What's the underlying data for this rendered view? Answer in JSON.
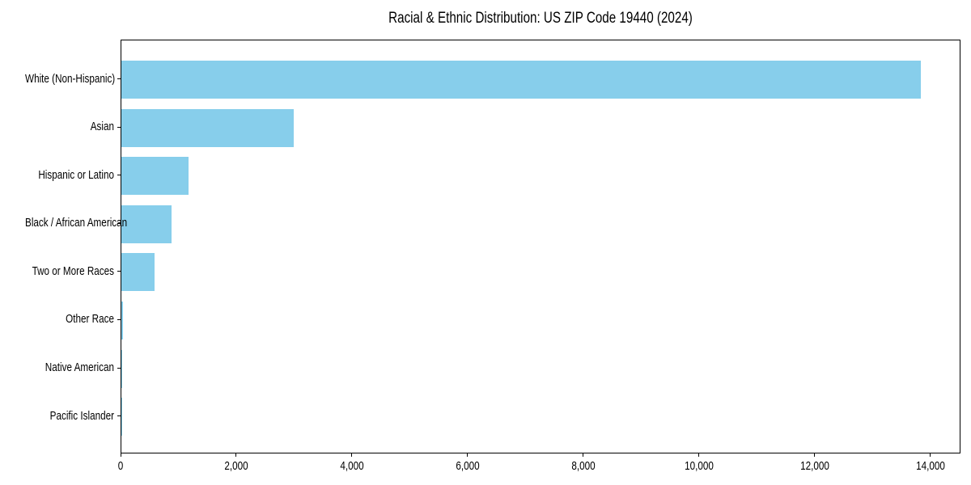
{
  "chart_data": {
    "type": "bar",
    "orientation": "horizontal",
    "title": "Racial & Ethnic Distribution: US ZIP Code 19440 (2024)",
    "categories": [
      "White (Non-Hispanic)",
      "Asian",
      "Hispanic or Latino",
      "Black / African American",
      "Two or More Races",
      "Other Race",
      "Native American",
      "Pacific Islander"
    ],
    "values": [
      13815,
      2975,
      1165,
      870,
      580,
      25,
      8,
      3
    ],
    "xlabel": "",
    "ylabel": "",
    "xlim": [
      0,
      14520
    ],
    "x_ticks": [
      0,
      2000,
      4000,
      6000,
      8000,
      10000,
      12000,
      14000
    ],
    "x_tick_labels": [
      "0",
      "2,000",
      "4,000",
      "6,000",
      "8,000",
      "10,000",
      "12,000",
      "14,000"
    ],
    "grid": false,
    "legend_position": "none",
    "colors": {
      "bar": "#87CEEB",
      "axis": "#000000",
      "text": "#000000",
      "background": "#FFFFFF"
    }
  }
}
